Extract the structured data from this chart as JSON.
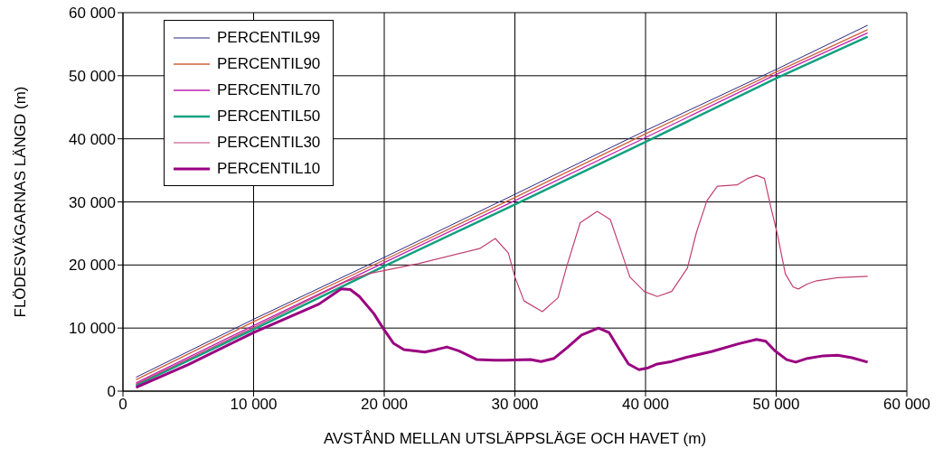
{
  "chart_data": {
    "type": "line",
    "xlabel": "AVSTÅND MELLAN UTSLÄPPSLÄGE OCH HAVET (m)",
    "ylabel": "FLÖDESVÄGARNAS LÄNGD (m)",
    "xlim": [
      0,
      60000
    ],
    "xticks": [
      0,
      {
        "value": 10000,
        "label": "10 000"
      },
      {
        "value": 20000,
        "label": "20 000"
      },
      {
        "value": 30000,
        "label": "30 000"
      },
      {
        "value": 40000,
        "label": "40 000"
      },
      {
        "value": 50000,
        "label": "50 000"
      },
      {
        "value": 60000,
        "label": "60 000"
      }
    ],
    "ylim": [
      0,
      60000
    ],
    "yticks": [
      0,
      {
        "value": 10000,
        "label": "10 000"
      },
      {
        "value": 20000,
        "label": "20 000"
      },
      {
        "value": 30000,
        "label": "30 000"
      },
      {
        "value": 40000,
        "label": "40 000"
      },
      {
        "value": 50000,
        "label": "50 000"
      },
      {
        "value": 60000,
        "label": "60 000"
      }
    ],
    "grid": true,
    "legend": "top left",
    "marker": "none",
    "line_style": "solid",
    "series": [
      {
        "name": "PERCENTIL99",
        "color": "#2a2a80",
        "x": [
          1000,
          10000,
          20000,
          30000,
          40000,
          50000,
          57000
        ],
        "values": [
          2200,
          11400,
          21200,
          31200,
          41300,
          51000,
          58000
        ]
      },
      {
        "name": "PERCENTIL90",
        "color": "#d0603a",
        "x": [
          1000,
          10000,
          20000,
          30000,
          40000,
          50000,
          57000
        ],
        "values": [
          1800,
          11000,
          20800,
          30700,
          40800,
          50600,
          57300
        ]
      },
      {
        "name": "PERCENTIL70",
        "color": "#c020b0",
        "x": [
          1000,
          10000,
          20000,
          30000,
          40000,
          50000,
          57000
        ],
        "values": [
          1300,
          10400,
          20400,
          30200,
          40200,
          50200,
          56800
        ]
      },
      {
        "name": "PERCENTIL50",
        "color": "#10a080",
        "x": [
          1000,
          10000,
          20000,
          30000,
          40000,
          50000,
          57000
        ],
        "values": [
          900,
          9800,
          19800,
          29600,
          39500,
          49600,
          56200
        ]
      },
      {
        "name": "PERCENTIL30",
        "color": "#c04070",
        "x": [
          1000,
          10000,
          17000,
          18750,
          22600,
          27300,
          28500,
          29500,
          30000,
          30700,
          32100,
          33300,
          34000,
          35000,
          36300,
          37300,
          38100,
          38800,
          39900,
          40900,
          42000,
          43200,
          43900,
          44700,
          45500,
          47000,
          47800,
          48500,
          49100,
          49600,
          50100,
          50700,
          51300,
          51700,
          52400,
          53100,
          54700,
          57000
        ],
        "values": [
          1100,
          10100,
          17300,
          18600,
          20200,
          22600,
          24200,
          21900,
          18100,
          14300,
          12600,
          14800,
          20000,
          26700,
          28500,
          27200,
          22400,
          18100,
          15800,
          15000,
          15800,
          19500,
          25200,
          30200,
          32500,
          32700,
          33700,
          34200,
          33700,
          29100,
          24800,
          18600,
          16500,
          16200,
          17000,
          17500,
          18000,
          18200
        ]
      },
      {
        "name": "PERCENTIL10",
        "color": "#990080",
        "x": [
          1000,
          5000,
          10000,
          15000,
          16000,
          16700,
          17400,
          18100,
          19200,
          19900,
          20700,
          21500,
          23100,
          24000,
          24800,
          25700,
          27100,
          28400,
          29300,
          31200,
          32000,
          33000,
          34000,
          35100,
          36400,
          37200,
          38000,
          38700,
          39500,
          40200,
          40900,
          42000,
          43200,
          45100,
          47100,
          48500,
          49200,
          49900,
          50800,
          51500,
          52400,
          53600,
          54700,
          55800,
          57000
        ],
        "values": [
          600,
          4200,
          9300,
          13800,
          15200,
          16200,
          16100,
          15000,
          12300,
          10000,
          7600,
          6600,
          6200,
          6600,
          7000,
          6400,
          5000,
          4900,
          4900,
          5000,
          4700,
          5200,
          6900,
          8900,
          10000,
          9300,
          6600,
          4300,
          3400,
          3700,
          4300,
          4700,
          5400,
          6300,
          7500,
          8200,
          7900,
          6400,
          5000,
          4600,
          5200,
          5600,
          5700,
          5300,
          4600
        ]
      }
    ]
  }
}
